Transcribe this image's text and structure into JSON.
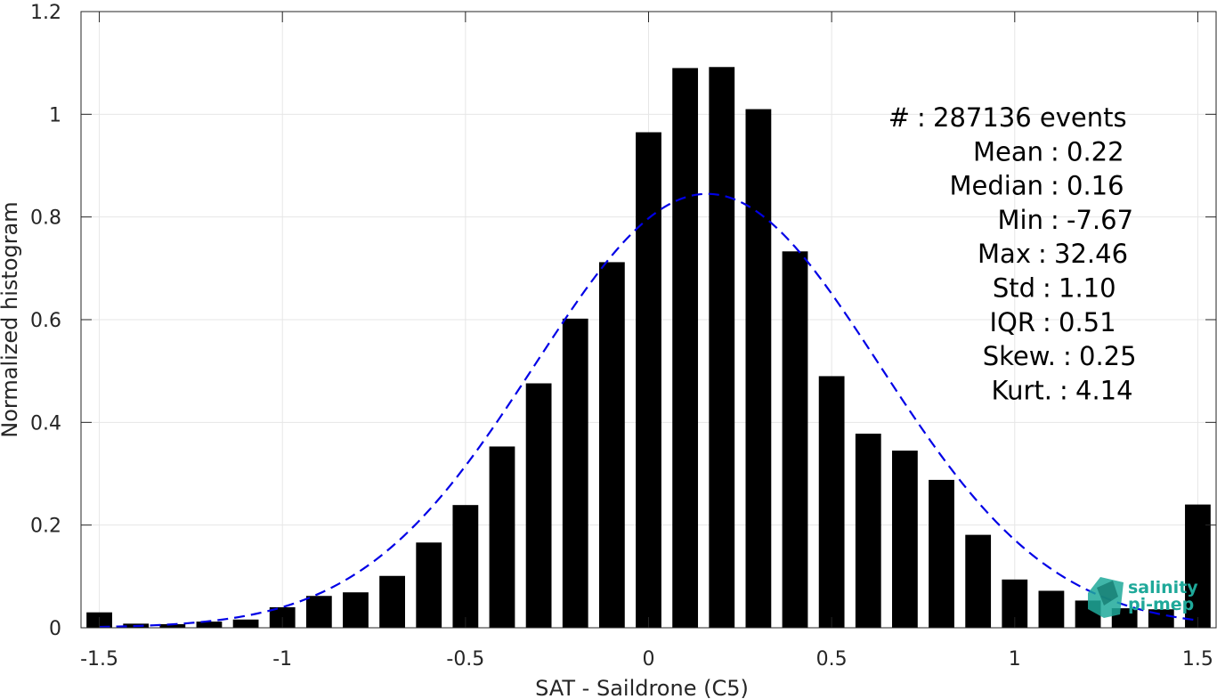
{
  "chart_data": {
    "type": "bar",
    "xlabel": "SAT - Saildrone (C5)",
    "ylabel": "Normalized histogram",
    "xlim": [
      -1.55,
      1.55
    ],
    "ylim": [
      0,
      1.2
    ],
    "xticks": [
      -1.5,
      -1,
      -0.5,
      0,
      0.5,
      1,
      1.5
    ],
    "xtick_labels": [
      "-1.5",
      "-1",
      "-0.5",
      "0",
      "0.5",
      "1",
      "1.5"
    ],
    "yticks": [
      0,
      0.2,
      0.4,
      0.6,
      0.8,
      1,
      1.2
    ],
    "ytick_labels": [
      "0",
      "0.2",
      "0.4",
      "0.6",
      "0.8",
      "1",
      "1.2"
    ],
    "grid": true,
    "bar_color": "#000000",
    "bin_width": 0.1,
    "x": [
      -1.5,
      -1.4,
      -1.3,
      -1.2,
      -1.1,
      -1.0,
      -0.9,
      -0.8,
      -0.7,
      -0.6,
      -0.5,
      -0.4,
      -0.3,
      -0.2,
      -0.1,
      0.0,
      0.1,
      0.2,
      0.3,
      0.4,
      0.5,
      0.6,
      0.7,
      0.8,
      0.9,
      1.0,
      1.1,
      1.2,
      1.3,
      1.4,
      1.5
    ],
    "values": [
      0.03,
      0.008,
      0.007,
      0.012,
      0.016,
      0.04,
      0.062,
      0.069,
      0.101,
      0.166,
      0.239,
      0.353,
      0.476,
      0.602,
      0.712,
      0.965,
      1.09,
      1.092,
      1.01,
      0.733,
      0.49,
      0.378,
      0.345,
      0.288,
      0.181,
      0.094,
      0.072,
      0.053,
      0.038,
      0.036,
      0.24
    ],
    "fit": {
      "type": "normal",
      "mean": 0.16,
      "std": 0.47,
      "peak": 0.845,
      "x_range": [
        -1.5,
        1.5
      ],
      "color": "#0000e6",
      "style": "dashed"
    },
    "stats": [
      {
        "label": "#  ",
        "sep": ":",
        "value": "287136 events"
      },
      {
        "label": "Mean ",
        "sep": ":",
        "value": "0.22"
      },
      {
        "label": "Median ",
        "sep": ":",
        "value": "0.16"
      },
      {
        "label": "Min ",
        "sep": ":",
        "value": "-7.67"
      },
      {
        "label": "Max ",
        "sep": ":",
        "value": "32.46"
      },
      {
        "label": "Std ",
        "sep": ":",
        "value": "1.10"
      },
      {
        "label": "IQR ",
        "sep": ":",
        "value": "0.51"
      },
      {
        "label": "Skew. ",
        "sep": ":",
        "value": "0.25"
      },
      {
        "label": "Kurt. ",
        "sep": ":",
        "value": "4.14"
      }
    ]
  },
  "logo": {
    "line1": "salinity",
    "line2": "pi-mep",
    "color": "#1fa99a"
  }
}
